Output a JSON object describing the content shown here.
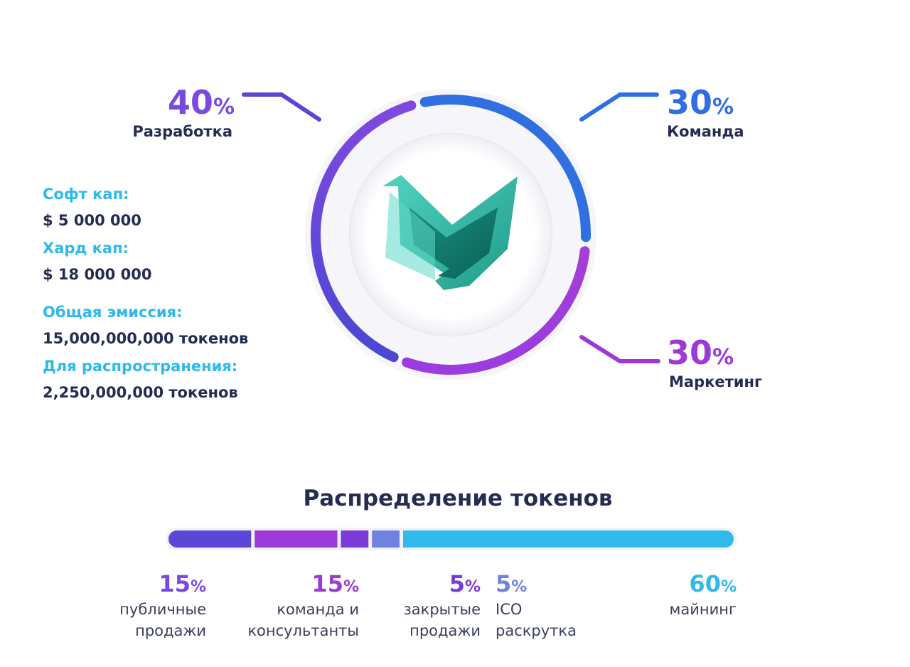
{
  "chart_data": [
    {
      "type": "pie",
      "style": "ring",
      "segments": [
        {
          "label": "Разработка",
          "value": 40,
          "color_start": "#4a48d3",
          "color_end": "#7e49e0"
        },
        {
          "label": "Команда",
          "value": 30,
          "color": "#2f6fe0"
        },
        {
          "label": "Маркетинг",
          "value": 30,
          "color_start": "#9b3ce0",
          "color_end": "#a43ed6"
        }
      ]
    },
    {
      "type": "bar",
      "orientation": "stacked-horizontal",
      "title": "Распределение токенов",
      "segments": [
        {
          "label": "публичные продажи",
          "lines": [
            "публичные",
            "продажи"
          ],
          "value": 15,
          "color": "#5b46d8",
          "label_color": "#7a4ae0"
        },
        {
          "label": "команда и консультанты",
          "lines": [
            "команда и",
            "консультанты"
          ],
          "value": 15,
          "color": "#9b3ad6",
          "label_color": "#9b3ad6"
        },
        {
          "label": "закрытые продажи",
          "lines": [
            "закрытые",
            "продажи"
          ],
          "value": 5,
          "color": "#7a3bd8",
          "label_color": "#7a3bd8"
        },
        {
          "label": "ICO раскрутка",
          "lines": [
            "ICO",
            "раскрутка"
          ],
          "value": 5,
          "color": "#6f82e2",
          "label_color": "#6f82e2"
        },
        {
          "label": "майнинг",
          "lines": [
            "майнинг"
          ],
          "value": 60,
          "color": "#31b9ec",
          "label_color": "#31b9ec"
        }
      ]
    }
  ],
  "percent_sign": "%",
  "info": [
    {
      "key": "Софт кап:",
      "value": "$ 5 000 000"
    },
    {
      "key": "Хард кап:",
      "value": "$ 18 000 000"
    },
    {
      "key": "Общая эмиссия:",
      "value": "15,000,000,000 токенов"
    },
    {
      "key": "Для распространения:",
      "value": "2,250,000,000 токенов"
    }
  ],
  "logo": {
    "name": "book-m-logo",
    "colors": [
      "#3ec6b4",
      "#0e7a6c"
    ]
  }
}
